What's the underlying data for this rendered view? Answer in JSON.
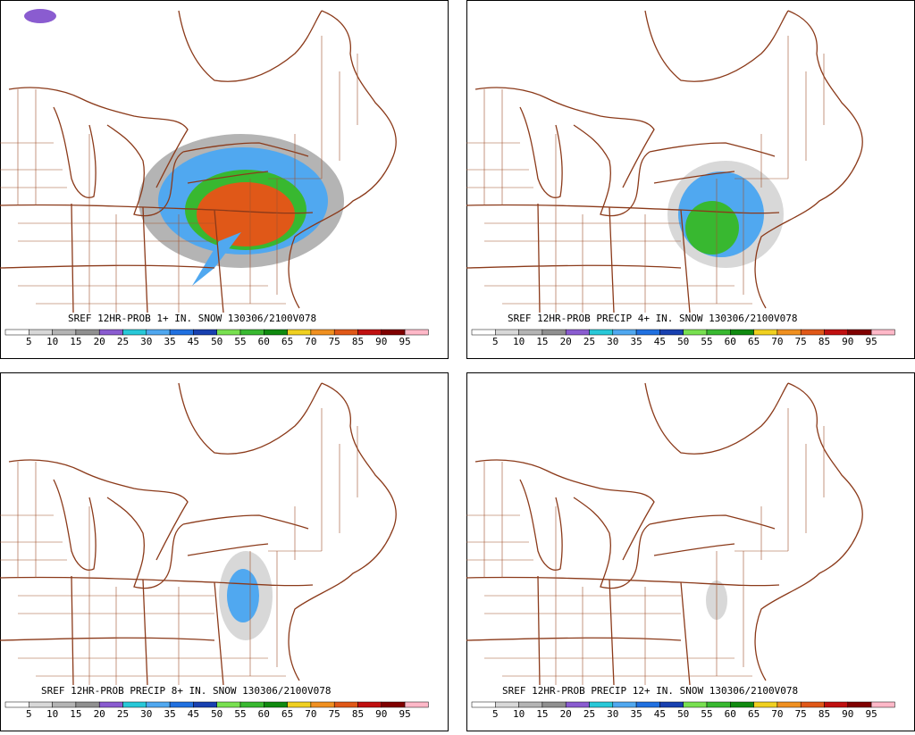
{
  "panels": [
    {
      "title": "SREF 12HR-PROB 1+ IN. SNOW 130306/2100V078"
    },
    {
      "title": "SREF 12HR-PROB PRECIP 4+ IN. SNOW 130306/2100V078"
    },
    {
      "title": "SREF 12HR-PROB PRECIP 8+ IN. SNOW 130306/2100V078"
    },
    {
      "title": "SREF 12HR-PROB PRECIP 12+ IN. SNOW 130306/2100V078"
    }
  ],
  "colorbar": {
    "labels": [
      "5",
      "10",
      "15",
      "20",
      "25",
      "30",
      "35",
      "45",
      "50",
      "55",
      "60",
      "65",
      "70",
      "75",
      "85",
      "90",
      "95"
    ],
    "colors": [
      "#ffffff",
      "#d8d8d8",
      "#b4b4b4",
      "#909090",
      "#8a5cd0",
      "#28c8d8",
      "#50a8f0",
      "#2070e0",
      "#1840b0",
      "#78e050",
      "#38b830",
      "#108a10",
      "#f0d020",
      "#f09020",
      "#e05818",
      "#c01010",
      "#800000",
      "#ffb8c8"
    ]
  }
}
